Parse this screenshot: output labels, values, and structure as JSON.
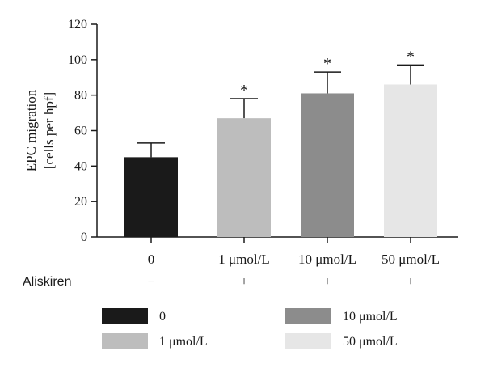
{
  "chart_data": {
    "type": "bar",
    "categories": [
      "0",
      "1 μmol/L",
      "10 μmol/L",
      "50 μmol/L"
    ],
    "values": [
      45,
      67,
      81,
      86
    ],
    "error_upper": [
      53,
      78,
      93,
      97
    ],
    "significance": [
      "",
      "*",
      "*",
      "*"
    ],
    "colors": [
      "#1a1a1a",
      "#bdbdbd",
      "#8c8c8c",
      "#e6e6e6"
    ],
    "ylabel_lines": [
      "EPC migration",
      "[cells per hpf]"
    ],
    "ylim": [
      0,
      120
    ],
    "yticks": [
      0,
      20,
      40,
      60,
      80,
      100,
      120
    ],
    "aliskiren": {
      "label": "Aliskiren",
      "signs": [
        "−",
        "+",
        "+",
        "+"
      ]
    },
    "legend": [
      {
        "label": "0",
        "color": "#1a1a1a"
      },
      {
        "label": "10 μmol/L",
        "color": "#8c8c8c"
      },
      {
        "label": "1 μmol/L",
        "color": "#bdbdbd"
      },
      {
        "label": "50 μmol/L",
        "color": "#e6e6e6"
      }
    ],
    "legend_placement": "bottom",
    "grid": false
  }
}
